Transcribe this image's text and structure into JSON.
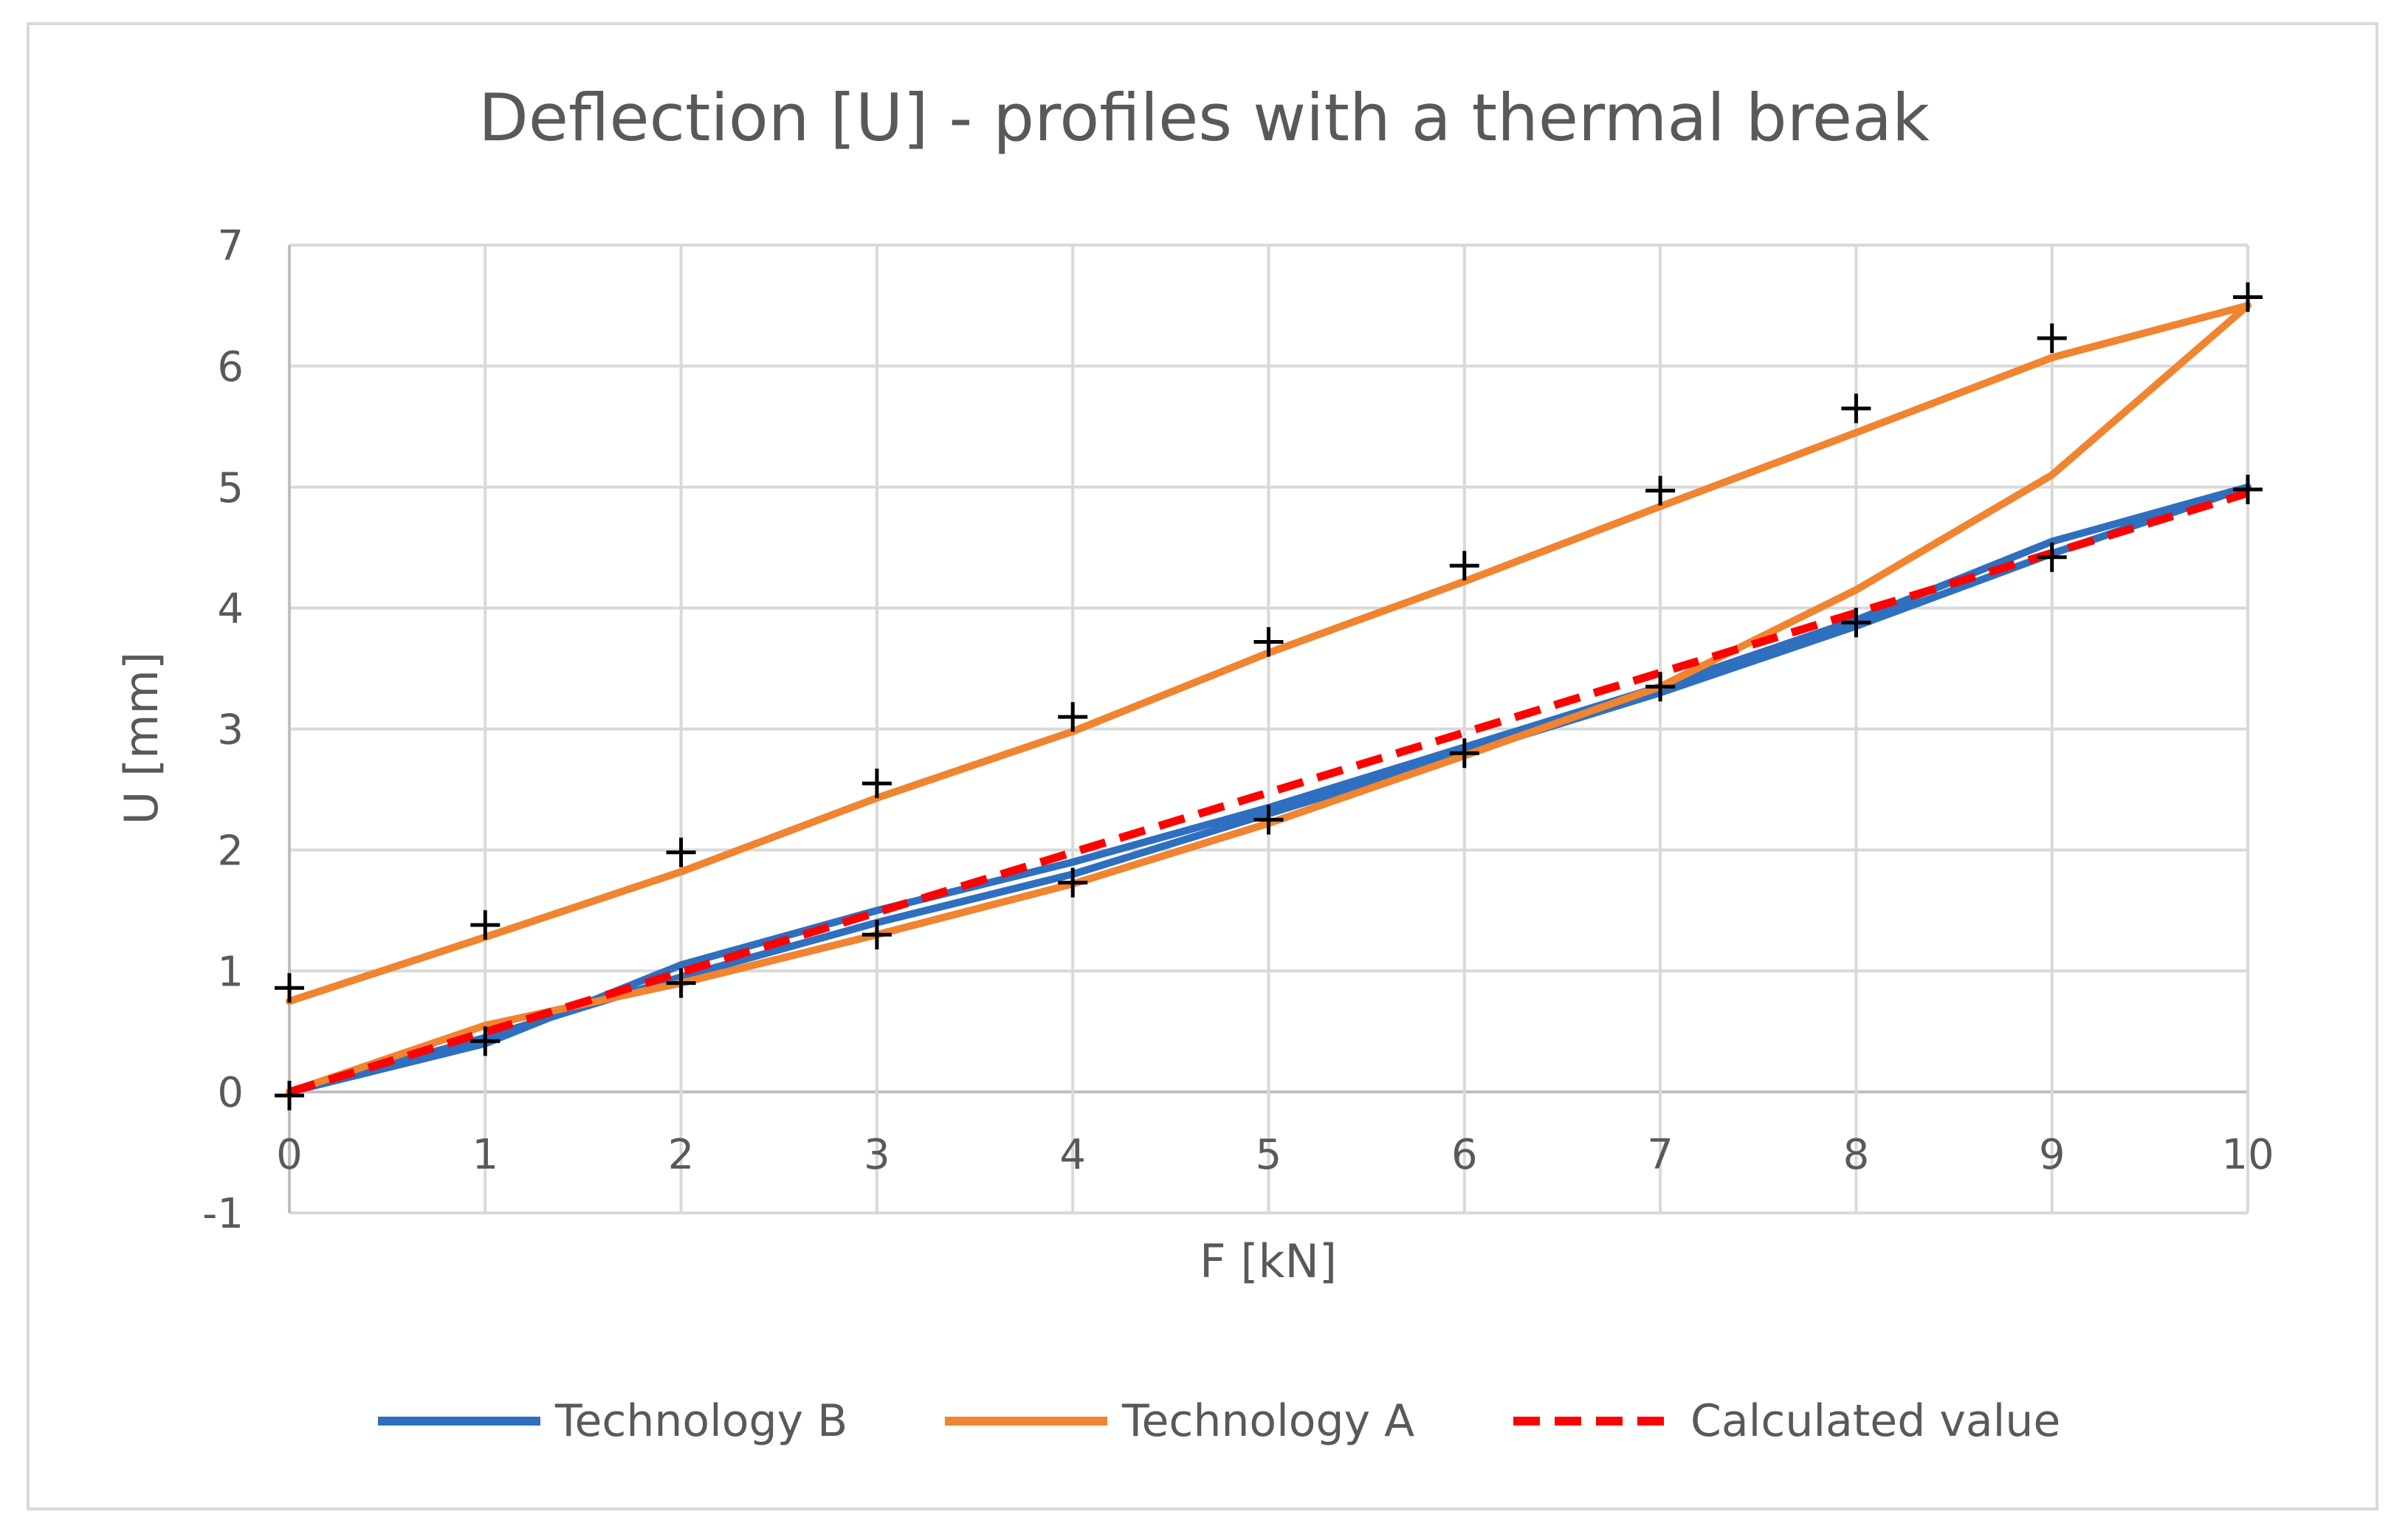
{
  "chart_data": {
    "type": "line",
    "title": "Deflection [U] - profiles with a thermal break",
    "xlabel": "F [kN]",
    "ylabel": "U [mm]",
    "xlim": [
      0,
      10
    ],
    "ylim": [
      -1,
      7
    ],
    "x_ticks": [
      "0",
      "1",
      "2",
      "3",
      "4",
      "5",
      "6",
      "7",
      "8",
      "9",
      "10"
    ],
    "y_ticks": [
      "-1",
      "0",
      "1",
      "2",
      "3",
      "4",
      "5",
      "6",
      "7"
    ],
    "grid": true,
    "legend_position": "bottom",
    "series": [
      {
        "name": "Technology B",
        "color": "#2f6fbf",
        "style": "solid",
        "points": [
          [
            0,
            0
          ],
          [
            1,
            0.4
          ],
          [
            2,
            1.05
          ],
          [
            3,
            1.5
          ],
          [
            4,
            1.9
          ],
          [
            5,
            2.35
          ],
          [
            6,
            2.85
          ],
          [
            7,
            3.35
          ],
          [
            8,
            3.9
          ],
          [
            9,
            4.55
          ],
          [
            10,
            5.0
          ],
          [
            9,
            4.45
          ],
          [
            8,
            3.85
          ],
          [
            7,
            3.3
          ],
          [
            6,
            2.8
          ],
          [
            5,
            2.3
          ],
          [
            4,
            1.8
          ],
          [
            3,
            1.4
          ],
          [
            2,
            0.95
          ],
          [
            1,
            0.45
          ],
          [
            0,
            0
          ]
        ]
      },
      {
        "name": "Technology A",
        "color": "#f08430",
        "style": "solid",
        "points": [
          [
            0,
            0
          ],
          [
            1,
            0.55
          ],
          [
            2,
            0.9
          ],
          [
            3,
            1.3
          ],
          [
            4,
            1.72
          ],
          [
            5,
            2.22
          ],
          [
            6,
            2.78
          ],
          [
            7,
            3.35
          ],
          [
            8,
            4.15
          ],
          [
            9,
            5.1
          ],
          [
            10,
            6.5
          ],
          [
            9,
            6.07
          ],
          [
            8,
            5.45
          ],
          [
            7,
            4.84
          ],
          [
            6,
            4.22
          ],
          [
            5,
            3.63
          ],
          [
            4,
            2.98
          ],
          [
            3,
            2.43
          ],
          [
            2,
            1.82
          ],
          [
            1,
            1.28
          ],
          [
            0,
            0.75
          ]
        ]
      },
      {
        "name": "Calculated value",
        "color": "#ff0000",
        "style": "dashed",
        "points": [
          [
            0,
            0
          ],
          [
            10,
            4.95
          ]
        ]
      }
    ],
    "markers": {
      "symbol": "+",
      "color": "#000000",
      "points": [
        [
          0,
          0.86
        ],
        [
          1,
          1.38
        ],
        [
          2,
          1.98
        ],
        [
          3,
          2.55
        ],
        [
          4,
          3.1
        ],
        [
          5,
          3.72
        ],
        [
          6,
          4.35
        ],
        [
          7,
          4.97
        ],
        [
          8,
          5.65
        ],
        [
          9,
          6.23
        ],
        [
          10,
          6.57
        ],
        [
          0,
          -0.03
        ],
        [
          1,
          0.42
        ],
        [
          2,
          0.9
        ],
        [
          3,
          1.3
        ],
        [
          4,
          1.73
        ],
        [
          5,
          2.25
        ],
        [
          6,
          2.8
        ],
        [
          7,
          3.35
        ],
        [
          8,
          3.88
        ],
        [
          9,
          4.42
        ],
        [
          10,
          4.98
        ]
      ]
    }
  }
}
